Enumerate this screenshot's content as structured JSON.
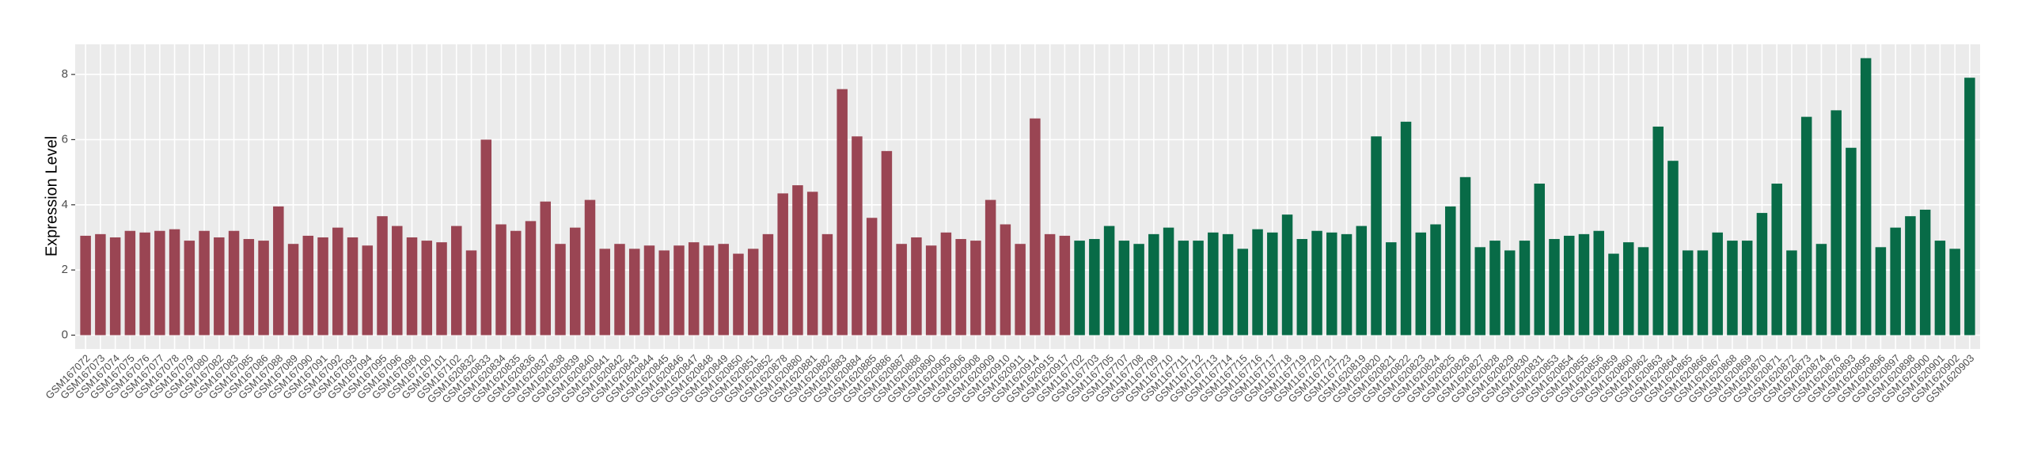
{
  "chart_data": {
    "type": "bar",
    "y_label": "Expression Level",
    "ylim": [
      -0.425,
      8.925
    ],
    "yticks": [
      0,
      2,
      4,
      6,
      8
    ],
    "grid": true,
    "series": [
      {
        "color": "#9a4553",
        "categories": [
          "GSM167072",
          "GSM167073",
          "GSM167074",
          "GSM167075",
          "GSM167076",
          "GSM167077",
          "GSM167078",
          "GSM167079",
          "GSM167080",
          "GSM167082",
          "GSM167083",
          "GSM167085",
          "GSM167086",
          "GSM167088",
          "GSM167089",
          "GSM167090",
          "GSM167091",
          "GSM167092",
          "GSM167093",
          "GSM167094",
          "GSM167095",
          "GSM167096",
          "GSM167098",
          "GSM167100",
          "GSM167101",
          "GSM167102",
          "GSM1620832",
          "GSM1620833",
          "GSM1620834",
          "GSM1620835",
          "GSM1620836",
          "GSM1620837",
          "GSM1620838",
          "GSM1620839",
          "GSM1620840",
          "GSM1620841",
          "GSM1620842",
          "GSM1620843",
          "GSM1620844",
          "GSM1620845",
          "GSM1620846",
          "GSM1620847",
          "GSM1620848",
          "GSM1620849",
          "GSM1620850",
          "GSM1620851",
          "GSM1620852",
          "GSM1620878",
          "GSM1620880",
          "GSM1620881",
          "GSM1620882",
          "GSM1620883",
          "GSM1620884",
          "GSM1620885",
          "GSM1620886",
          "GSM1620887",
          "GSM1620888",
          "GSM1620890",
          "GSM1620905",
          "GSM1620906",
          "GSM1620908",
          "GSM1620909",
          "GSM1620910",
          "GSM1620911",
          "GSM1620914",
          "GSM1620915",
          "GSM1620917"
        ],
        "values": [
          3.05,
          3.1,
          3.0,
          3.2,
          3.15,
          3.2,
          3.25,
          2.9,
          3.2,
          3.0,
          3.2,
          2.95,
          2.9,
          3.95,
          2.8,
          3.05,
          3.0,
          3.3,
          3.0,
          2.75,
          3.65,
          3.35,
          3.0,
          2.9,
          2.85,
          3.35,
          2.6,
          6.0,
          3.4,
          3.2,
          3.5,
          4.1,
          2.8,
          3.3,
          4.15,
          2.65,
          2.8,
          2.65,
          2.75,
          2.6,
          2.75,
          2.85,
          2.75,
          2.8,
          2.5,
          2.65,
          3.1,
          4.35,
          4.6,
          4.4,
          3.1,
          7.55,
          6.1,
          3.6,
          5.65,
          2.8,
          3.0,
          2.75,
          3.15,
          2.95,
          2.9,
          4.15,
          3.4,
          2.8,
          6.65,
          3.1,
          3.05
        ]
      },
      {
        "color": "#086b47",
        "categories": [
          "GSM1167702",
          "GSM1167703",
          "GSM1167705",
          "GSM1167707",
          "GSM1167708",
          "GSM1167709",
          "GSM1167710",
          "GSM1167711",
          "GSM1167712",
          "GSM1167713",
          "GSM1167714",
          "GSM1167715",
          "GSM1167716",
          "GSM1167717",
          "GSM1167718",
          "GSM1167719",
          "GSM1167720",
          "GSM1167721",
          "GSM1167723",
          "GSM1620819",
          "GSM1620820",
          "GSM1620821",
          "GSM1620822",
          "GSM1620823",
          "GSM1620824",
          "GSM1620825",
          "GSM1620826",
          "GSM1620827",
          "GSM1620828",
          "GSM1620829",
          "GSM1620830",
          "GSM1620831",
          "GSM1620853",
          "GSM1620854",
          "GSM1620855",
          "GSM1620856",
          "GSM1620859",
          "GSM1620860",
          "GSM1620862",
          "GSM1620863",
          "GSM1620864",
          "GSM1620865",
          "GSM1620866",
          "GSM1620867",
          "GSM1620868",
          "GSM1620869",
          "GSM1620870",
          "GSM1620871",
          "GSM1620872",
          "GSM1620873",
          "GSM1620874",
          "GSM1620876",
          "GSM1620893",
          "GSM1620895",
          "GSM1620896",
          "GSM1620897",
          "GSM1620898",
          "GSM1620900",
          "GSM1620901",
          "GSM1620902",
          "GSM1620903"
        ],
        "values": [
          2.9,
          2.95,
          3.35,
          2.9,
          2.8,
          3.1,
          3.3,
          2.9,
          2.9,
          3.15,
          3.1,
          2.65,
          3.25,
          3.15,
          3.7,
          2.95,
          3.2,
          3.15,
          3.1,
          3.35,
          6.1,
          2.85,
          6.55,
          3.15,
          3.4,
          3.95,
          4.85,
          2.7,
          2.9,
          2.6,
          2.9,
          4.65,
          2.95,
          3.05,
          3.1,
          3.2,
          2.5,
          2.85,
          2.7,
          6.4,
          5.35,
          2.6,
          2.6,
          3.15,
          2.9,
          2.9,
          3.75,
          4.65,
          2.6,
          6.7,
          2.8,
          6.9,
          5.75,
          8.5,
          2.7,
          3.3,
          3.65,
          3.85,
          2.9,
          2.65,
          7.9
        ]
      }
    ]
  }
}
